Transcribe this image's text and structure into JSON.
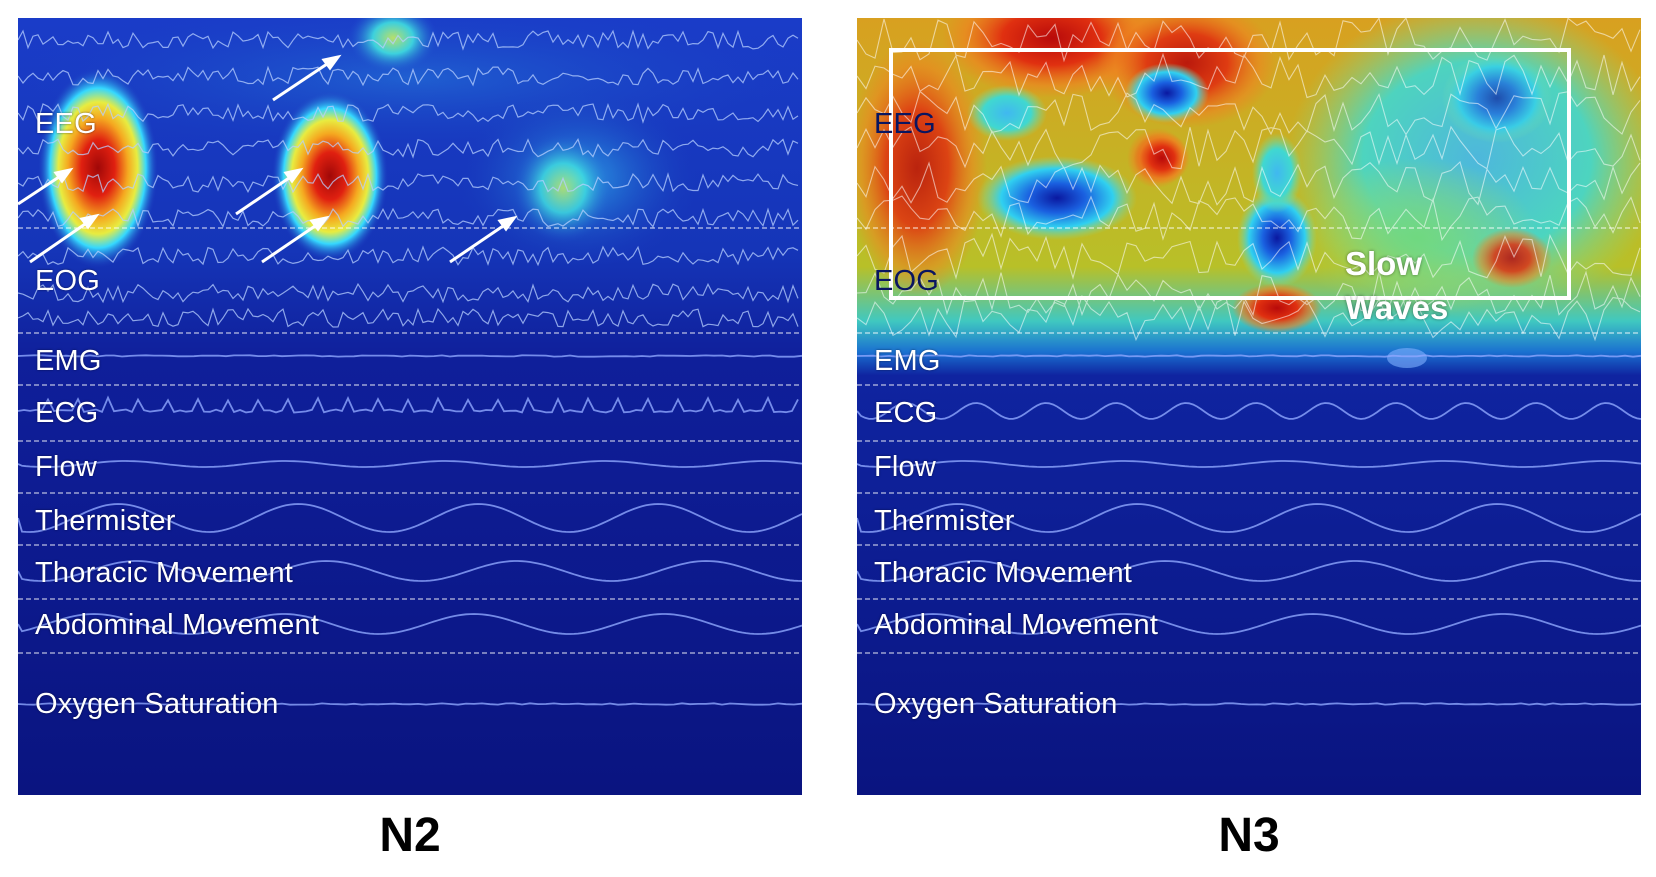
{
  "channels": [
    "EEG",
    "EOG",
    "EMG",
    "ECG",
    "Flow",
    "Thermister",
    "Thoracic Movement",
    "Abdominal Movement",
    "Oxygen Saturation"
  ],
  "panels": [
    {
      "stage": "N2"
    },
    {
      "stage": "N3",
      "box_label_line1": "Slow",
      "box_label_line2": "Waves"
    }
  ],
  "colors": {
    "background": "#0a1480",
    "heat_high": "#d81410",
    "heat_mid": "#f0e030",
    "heat_low": "#35d8ff",
    "trace": "#8fa8ff",
    "guide": "#ffffff"
  },
  "icons": [
    "arrow-icon",
    "highlight-box"
  ]
}
